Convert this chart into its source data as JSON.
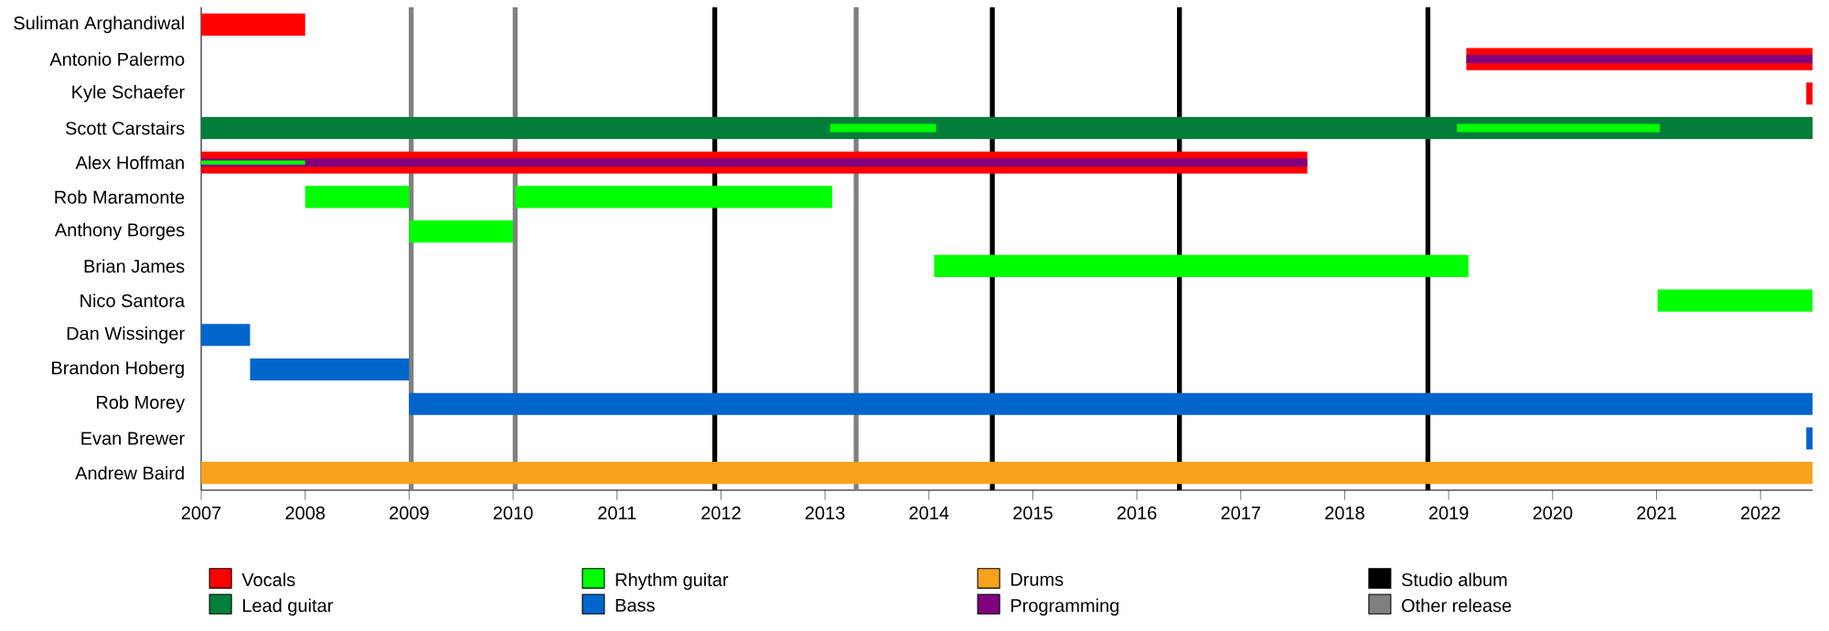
{
  "chart_data": {
    "type": "bar",
    "orientation": "horizontal",
    "categories": [
      "Suliman Arghandiwal",
      "Antonio Palermo",
      "Kyle Schaefer",
      "Scott Carstairs",
      "Alex Hoffman",
      "Rob Maramonte",
      "Anthony Borges",
      "Brian James",
      "Nico Santora",
      "Dan Wissinger",
      "Brandon Hoberg",
      "Rob Morey",
      "Evan Brewer",
      "Andrew Baird"
    ],
    "series": [
      {
        "name": "Vocals",
        "color": "#ff0000",
        "base": [
          2007,
          2019.17,
          2022.44,
          null,
          2007,
          null,
          null,
          null,
          null,
          null,
          null,
          null,
          null,
          null
        ],
        "values": [
          1.0,
          3.33,
          0.06,
          null,
          10.64,
          null,
          null,
          null,
          null,
          null,
          null,
          null,
          null,
          null
        ]
      },
      {
        "name": "Lead guitar",
        "color": "#007e3a",
        "base": [
          null,
          null,
          null,
          2007,
          null,
          null,
          null,
          null,
          null,
          null,
          null,
          null,
          null,
          null
        ],
        "values": [
          null,
          null,
          null,
          15.5,
          null,
          null,
          null,
          null,
          null,
          null,
          null,
          null,
          null,
          null
        ]
      },
      {
        "name": "Rhythm guitar",
        "color": "#00ff00",
        "base": [
          null,
          null,
          null,
          2013.05,
          null,
          2008,
          2009,
          2014.05,
          2021.01,
          null,
          null,
          null,
          null,
          null
        ],
        "values": [
          null,
          null,
          null,
          1.02,
          null,
          1.0,
          1.0,
          5.14,
          1.49,
          null,
          null,
          null,
          null,
          null
        ]
      },
      {
        "name": "Bass",
        "color": "#0066cc",
        "base": [
          null,
          null,
          null,
          null,
          null,
          null,
          null,
          null,
          null,
          2007,
          2007.47,
          2009,
          2022.44,
          null
        ],
        "values": [
          null,
          null,
          null,
          null,
          null,
          null,
          null,
          null,
          null,
          0.47,
          1.53,
          13.5,
          0.06,
          null
        ]
      },
      {
        "name": "Drums",
        "color": "#f7a21c",
        "base": [
          null,
          null,
          null,
          null,
          null,
          null,
          null,
          null,
          null,
          null,
          null,
          null,
          null,
          2007
        ],
        "values": [
          null,
          null,
          null,
          null,
          null,
          null,
          null,
          null,
          null,
          null,
          null,
          null,
          null,
          15.5
        ]
      },
      {
        "name": "Programming",
        "color": "#800080",
        "base": [
          null,
          2019.17,
          null,
          null,
          2007,
          null,
          null,
          null,
          null,
          null,
          null,
          null,
          null,
          null
        ],
        "values": [
          null,
          3.33,
          null,
          null,
          10.64,
          null,
          null,
          null,
          null,
          null,
          null,
          null,
          null,
          null
        ]
      },
      {
        "color": "#00ff00",
        "base": [
          null,
          null,
          null,
          2019.08,
          2007,
          2010.02,
          null,
          null,
          null,
          null,
          null,
          null,
          null,
          null
        ],
        "values": [
          null,
          null,
          null,
          1.95,
          1.0,
          3.05,
          null,
          null,
          null,
          null,
          null,
          null,
          null,
          null
        ]
      }
    ],
    "xlim": [
      2007,
      2022.5
    ],
    "xticks": [
      2007,
      2008,
      2009,
      2010,
      2011,
      2012,
      2013,
      2014,
      2015,
      2016,
      2017,
      2018,
      2019,
      2020,
      2021,
      2022
    ],
    "ref_lines": [
      {
        "axis": "x",
        "value": 2011.94,
        "label": "Studio album",
        "color": "#000000"
      },
      {
        "axis": "x",
        "value": 2014.61,
        "color": "#000000"
      },
      {
        "axis": "x",
        "value": 2016.41,
        "color": "#000000"
      },
      {
        "axis": "x",
        "value": 2018.8,
        "color": "#000000"
      },
      {
        "axis": "x",
        "value": 2009.02,
        "label": "Other release",
        "color": "#808080"
      },
      {
        "axis": "x",
        "value": 2010.02,
        "color": "#808080"
      },
      {
        "axis": "x",
        "value": 2013.3,
        "color": "#808080"
      }
    ],
    "legend": "bottom"
  }
}
